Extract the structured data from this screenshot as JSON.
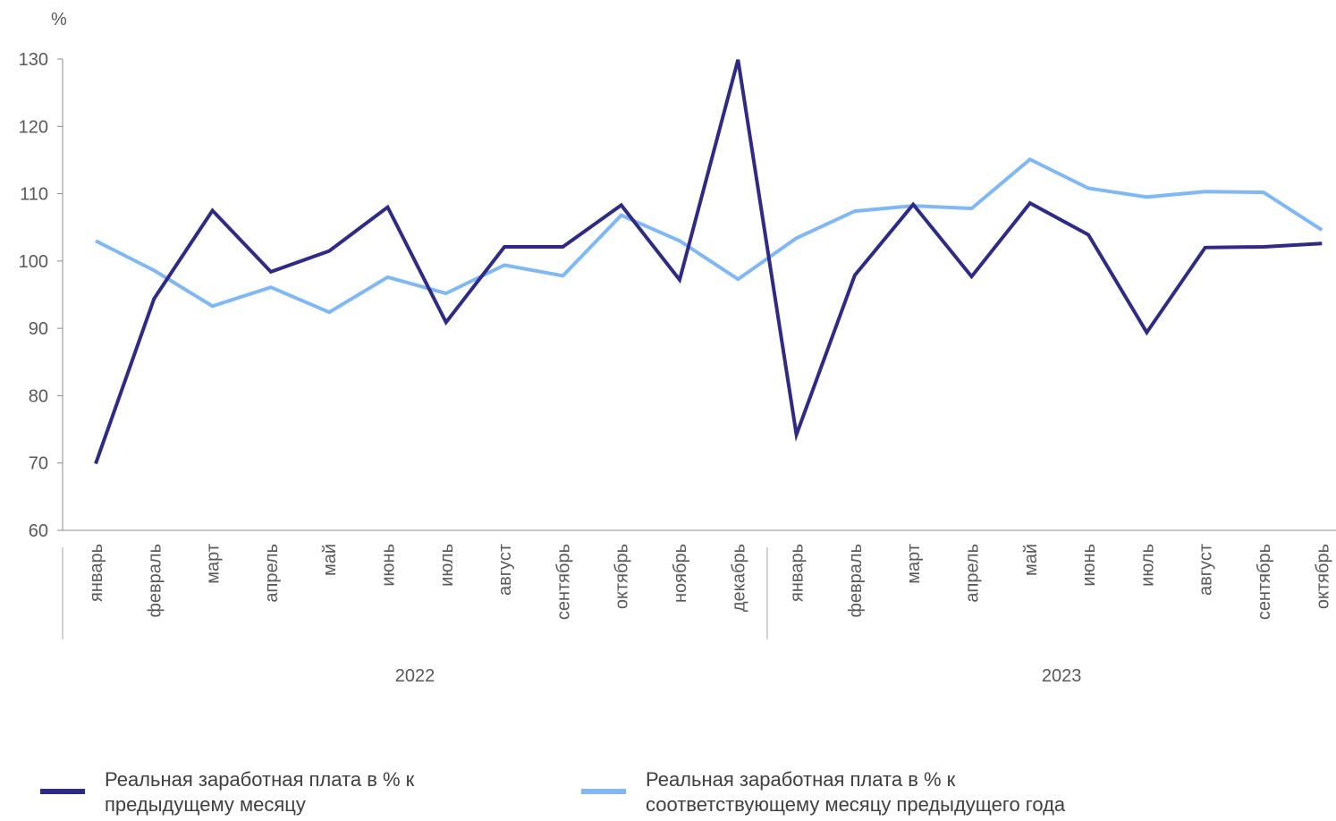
{
  "chart_data": {
    "type": "line",
    "y_unit": "%",
    "ylim": [
      60,
      130
    ],
    "yticks": [
      60,
      70,
      80,
      90,
      100,
      110,
      120,
      130
    ],
    "categories": [
      "январь",
      "февраль",
      "март",
      "апрель",
      "май",
      "июнь",
      "июль",
      "август",
      "сентябрь",
      "октябрь",
      "ноябрь",
      "декабрь",
      "январь",
      "февраль",
      "март",
      "апрель",
      "май",
      "июнь",
      "июль",
      "август",
      "сентябрь",
      "октябрь"
    ],
    "years": [
      {
        "label": "2022",
        "count": 12
      },
      {
        "label": "2023",
        "count": 10
      }
    ],
    "series": [
      {
        "name": "Реальная заработная плата в % к предыдущему месяцу",
        "color": "#2e2a86",
        "values": [
          69.9,
          94.4,
          107.5,
          98.4,
          101.5,
          108.0,
          90.9,
          102.1,
          102.1,
          108.3,
          97.2,
          129.9,
          74.2,
          97.9,
          108.4,
          97.7,
          108.6,
          103.9,
          89.4,
          102.0,
          102.1,
          102.6
        ]
      },
      {
        "name": "Реальная заработная плата в % к соответствующему месяцу предыдущего года",
        "color": "#7fb8f5",
        "values": [
          103.0,
          98.6,
          93.3,
          96.1,
          92.4,
          97.6,
          95.2,
          99.4,
          97.8,
          106.8,
          103.0,
          97.3,
          103.4,
          107.4,
          108.2,
          107.8,
          115.1,
          110.8,
          109.5,
          110.3,
          110.2,
          104.6
        ]
      }
    ]
  }
}
